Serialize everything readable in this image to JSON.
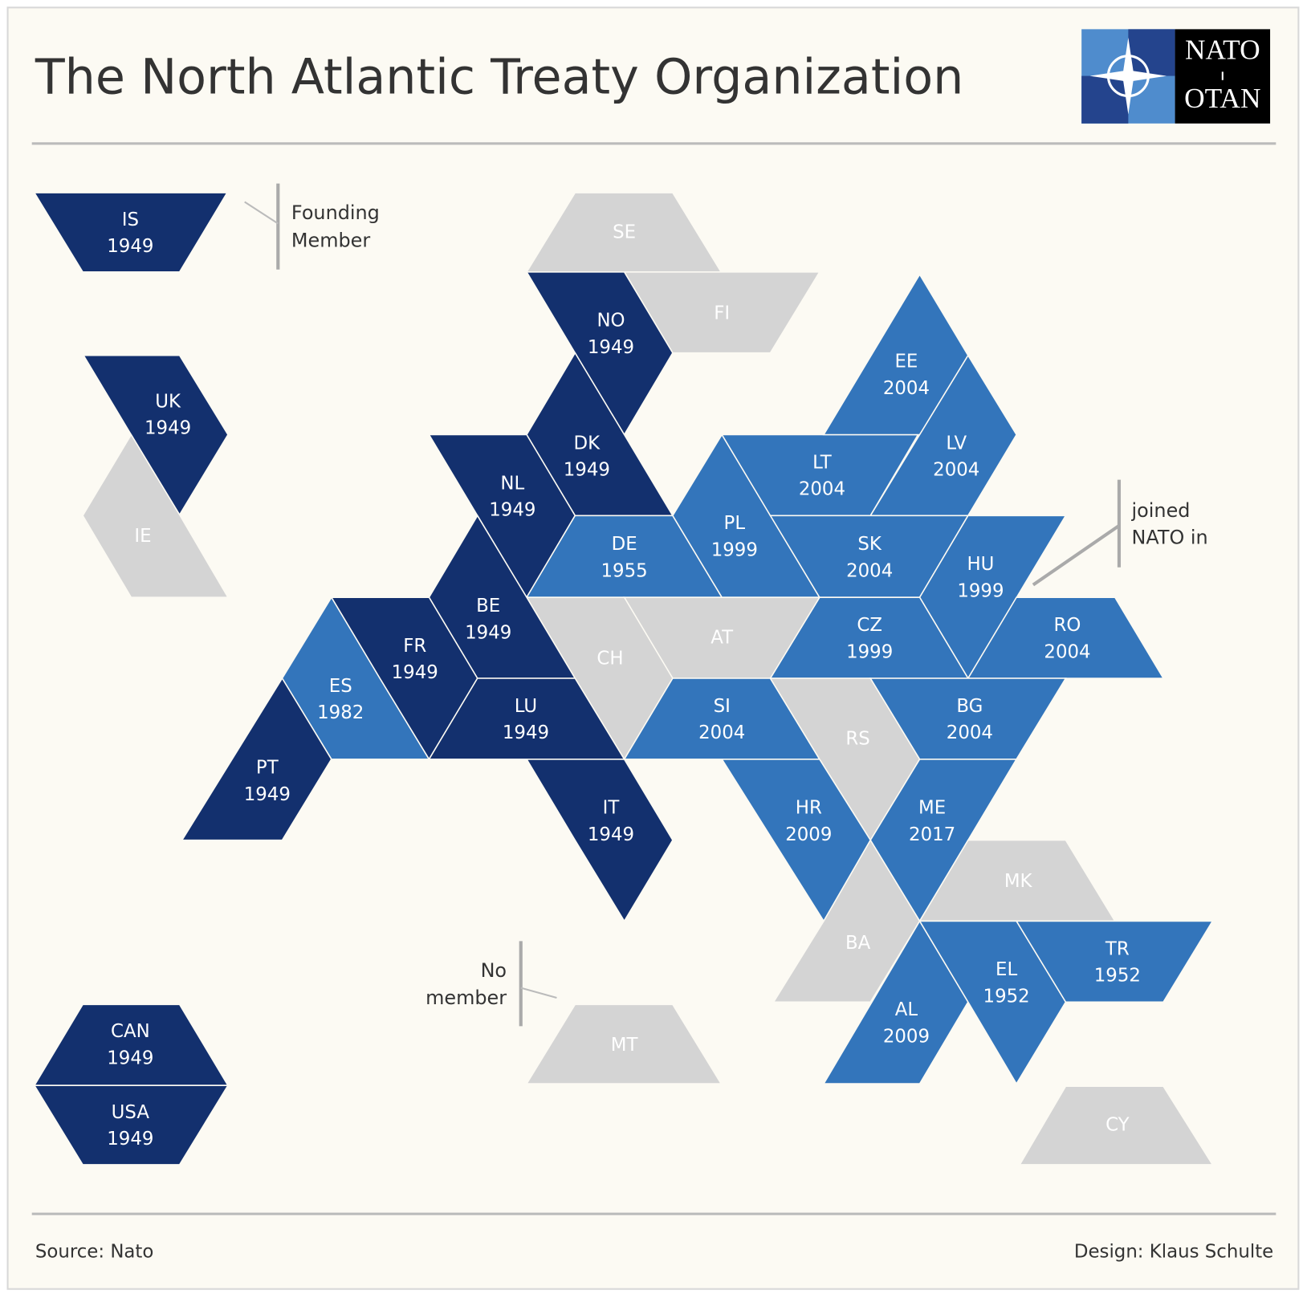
{
  "header": {
    "title": "The North Atlantic Treaty Organization"
  },
  "logo": {
    "top": "NATO",
    "bottom": "OTAN"
  },
  "colors": {
    "founding": "#13306e",
    "joined": "#3375bb",
    "none": "#d4d4d4"
  },
  "tiles": [
    {
      "code": "IS",
      "year": 1949
    },
    {
      "code": "UK",
      "year": 1949
    },
    {
      "code": "IE"
    },
    {
      "code": "SE"
    },
    {
      "code": "FI"
    },
    {
      "code": "NO",
      "year": 1949
    },
    {
      "code": "DK",
      "year": 1949
    },
    {
      "code": "NL",
      "year": 1949
    },
    {
      "code": "DE",
      "year": 1955
    },
    {
      "code": "PL",
      "year": 1999
    },
    {
      "code": "LT",
      "year": 2004
    },
    {
      "code": "EE",
      "year": 2004
    },
    {
      "code": "LV",
      "year": 2004
    },
    {
      "code": "SK",
      "year": 2004
    },
    {
      "code": "HU",
      "year": 1999
    },
    {
      "code": "RO",
      "year": 2004
    },
    {
      "code": "CZ",
      "year": 1999
    },
    {
      "code": "AT"
    },
    {
      "code": "CH"
    },
    {
      "code": "BE",
      "year": 1949
    },
    {
      "code": "FR",
      "year": 1949
    },
    {
      "code": "ES",
      "year": 1982
    },
    {
      "code": "PT",
      "year": 1949
    },
    {
      "code": "LU",
      "year": 1949
    },
    {
      "code": "IT",
      "year": 1949
    },
    {
      "code": "SI",
      "year": 2004
    },
    {
      "code": "RS"
    },
    {
      "code": "BG",
      "year": 2004
    },
    {
      "code": "HR",
      "year": 2009
    },
    {
      "code": "ME",
      "year": 2017
    },
    {
      "code": "MK"
    },
    {
      "code": "BA"
    },
    {
      "code": "AL",
      "year": 2009
    },
    {
      "code": "EL",
      "year": 1952
    },
    {
      "code": "TR",
      "year": 1952
    },
    {
      "code": "MT"
    },
    {
      "code": "CY"
    },
    {
      "code": "CAN",
      "year": 1949
    },
    {
      "code": "USA",
      "year": 1949
    }
  ],
  "annotations": {
    "founding": [
      "Founding",
      "Member"
    ],
    "joined": [
      "joined",
      "NATO in"
    ],
    "none": [
      "No",
      "member"
    ]
  },
  "footer": {
    "source": "Source: Nato",
    "design": "Design: Klaus Schulte"
  }
}
